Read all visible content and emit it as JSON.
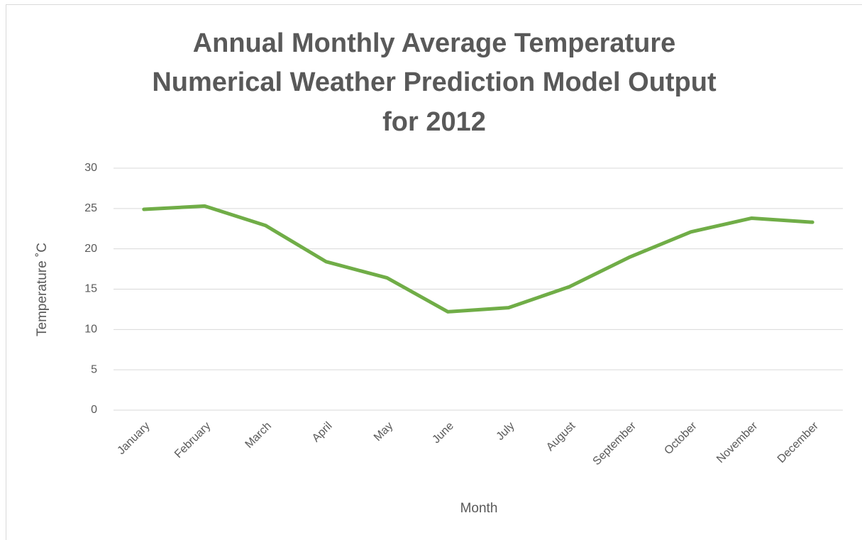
{
  "chart_data": {
    "type": "line",
    "title": [
      "Annual Monthly Average Temperature",
      "Numerical Weather Prediction Model Output",
      "for 2012"
    ],
    "x_label": "Month",
    "y_label": "Temperature ˚C",
    "categories": [
      "January",
      "February",
      "March",
      "April",
      "May",
      "June",
      "July",
      "August",
      "September",
      "October",
      "November",
      "December"
    ],
    "series": [
      {
        "name": "Temperature",
        "color": "#70ad47",
        "values": [
          24.9,
          25.3,
          22.9,
          18.4,
          16.4,
          12.2,
          12.7,
          15.3,
          19.0,
          22.1,
          23.8,
          23.3
        ]
      }
    ],
    "ylim": [
      0,
      30
    ],
    "yticks": [
      0,
      5,
      10,
      15,
      20,
      25,
      30
    ],
    "grid": true
  }
}
